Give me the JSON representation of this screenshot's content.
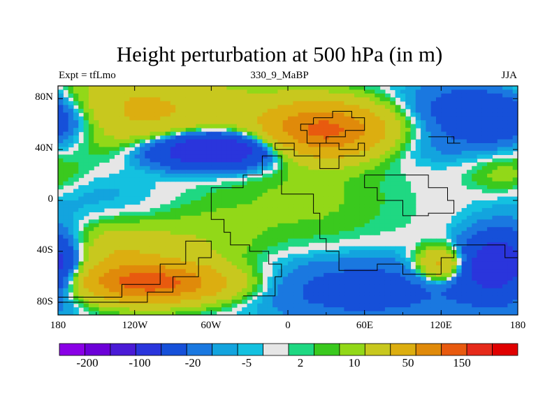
{
  "title": "Height perturbation at 500 hPa (in m)",
  "left_label": "Expt = tfLmo",
  "center_label": "330_9_MaBP",
  "right_label": "JJA",
  "chart_data": {
    "type": "heatmap",
    "title": "Height perturbation at 500 hPa (in m)",
    "left_label": "Expt = tfLmo",
    "center_label": "330_9_MaBP",
    "right_label": "JJA",
    "projection": "cylindrical equidistant",
    "xlim": [
      -180,
      180
    ],
    "ylim": [
      -90,
      90
    ],
    "x_ticks": [
      "180",
      "120W",
      "60W",
      "0",
      "60E",
      "120E",
      "180"
    ],
    "y_ticks": [
      "80N",
      "40N",
      "0",
      "40S",
      "80S"
    ],
    "colorbar_labels": [
      "-200",
      "-100",
      "-20",
      "-5",
      "2",
      "10",
      "50",
      "150"
    ],
    "contour_levels": [
      -200,
      -150,
      -100,
      -50,
      -20,
      -10,
      -5,
      -2,
      2,
      5,
      10,
      20,
      50,
      100,
      150,
      200
    ],
    "colors": [
      "#8a00e6",
      "#6c00d8",
      "#4a1ad6",
      "#2a35dc",
      "#1650d9",
      "#1a78e0",
      "#13a4de",
      "#14c1e0",
      "#e6e6e6",
      "#1fd882",
      "#3ac91e",
      "#92d818",
      "#c8c81e",
      "#dcae10",
      "#e08a0a",
      "#e85a0f",
      "#e62a1a",
      "#e00000"
    ],
    "sampled_values": [
      {
        "lon": -120,
        "lat": 70,
        "value": 50
      },
      {
        "lon": 30,
        "lat": 55,
        "value": 150
      },
      {
        "lon": -60,
        "lat": 40,
        "value": -100
      },
      {
        "lon": 150,
        "lat": 70,
        "value": -20
      },
      {
        "lon": 15,
        "lat": 0,
        "value": 10
      },
      {
        "lon": -150,
        "lat": 0,
        "value": -5
      },
      {
        "lon": -150,
        "lat": -45,
        "value": 50
      },
      {
        "lon": -105,
        "lat": -65,
        "value": 150
      },
      {
        "lon": 170,
        "lat": -50,
        "value": -100
      },
      {
        "lon": 120,
        "lat": -50,
        "value": 50
      },
      {
        "lon": 60,
        "lat": -70,
        "value": -20
      },
      {
        "lon": -60,
        "lat": -30,
        "value": 10
      },
      {
        "lon": 0,
        "lat": 70,
        "value": 10
      },
      {
        "lon": 100,
        "lat": 40,
        "value": -5
      }
    ]
  }
}
